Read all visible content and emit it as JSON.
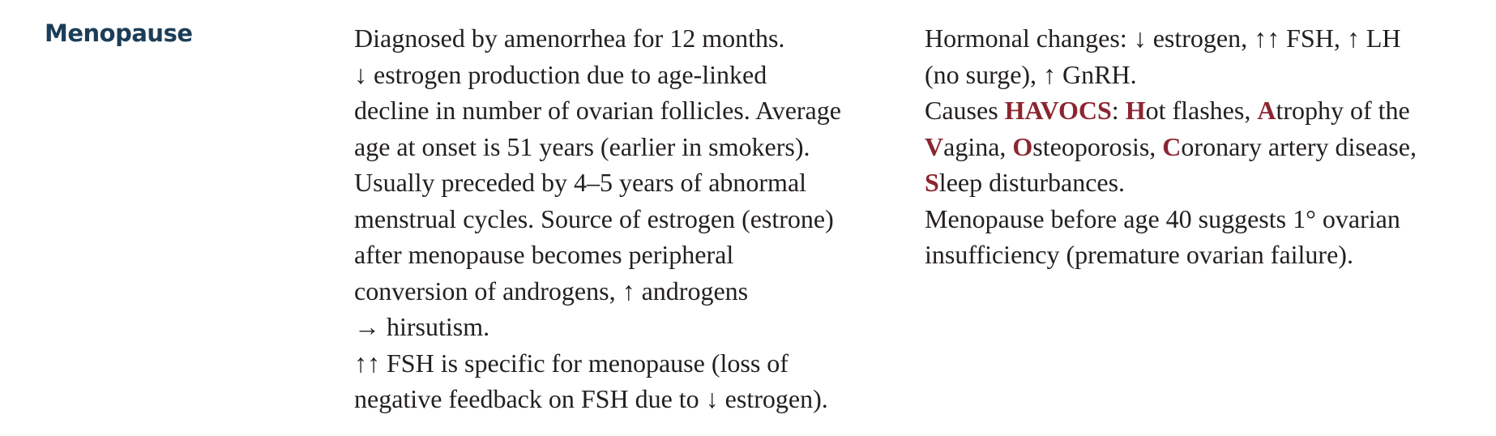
{
  "heading": "Menopause",
  "colors": {
    "heading": "#1b3d57",
    "mnemonic": "#8b2631",
    "text": "#231f20"
  },
  "column1": {
    "p1": [
      "Diagnosed by amenorrhea for 12 months.",
      "↓ estrogen production due to age-linked",
      "decline in number of ovarian follicles. Average",
      "age at onset is 51 years (earlier in smokers)."
    ],
    "p2": [
      "Usually preceded by 4–5 years of abnormal",
      "menstrual cycles. Source of estrogen (estrone)",
      "after menopause becomes peripheral",
      "conversion of androgens, ↑ androgens",
      "→ hirsutism."
    ],
    "p3": [
      "↑↑ FSH is specific for menopause (loss of",
      "negative feedback on FSH due to ↓ estrogen)."
    ]
  },
  "column2": {
    "p1": [
      "Hormonal changes: ↓ estrogen, ↑↑ FSH, ↑ LH",
      "(no surge), ↑ GnRH."
    ],
    "p2": {
      "causes": "Causes",
      "mnemonic": "HAVOCS",
      "after_mnemonic": ":",
      "letters": [
        "H",
        "A",
        "V",
        "O",
        "C",
        "S"
      ],
      "rest": {
        "h": "ot flashes,",
        "a": "trophy of the",
        "v": "agina,",
        "o": "steoporosis,",
        "c": "oronary artery disease,",
        "s": "leep disturbances."
      }
    },
    "p3": [
      "Menopause before age 40 suggests 1° ovarian",
      "insufficiency (premature ovarian failure)."
    ]
  }
}
